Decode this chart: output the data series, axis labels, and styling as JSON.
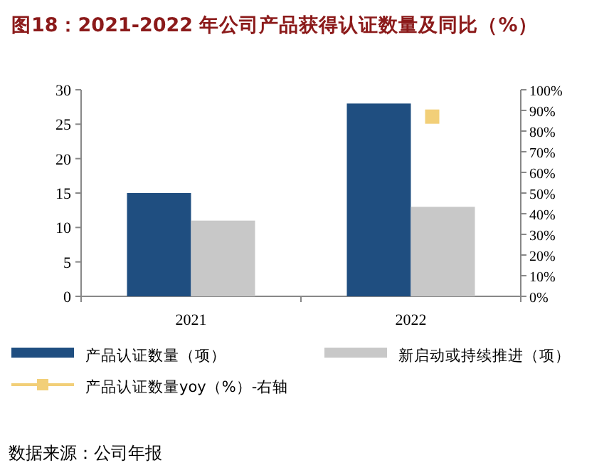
{
  "chart_data": {
    "type": "bar",
    "title": "图18：2021-2022 年公司产品获得认证数量及同比（%）",
    "categories": [
      "2021",
      "2022"
    ],
    "series": [
      {
        "name": "产品认证数量（项）",
        "color": "#1f4e80",
        "values": [
          15,
          28
        ]
      },
      {
        "name": "新启动或持续推进（项）",
        "color": "#c8c8c8",
        "values": [
          11,
          13
        ]
      },
      {
        "name": "产品认证数量yoy（%）-右轴",
        "color": "#f2cf78",
        "values": [
          null,
          87
        ],
        "type": "line",
        "axis": "y2",
        "marker": "square"
      }
    ],
    "ylim": [
      0,
      30
    ],
    "yticks": [
      0,
      5,
      10,
      15,
      20,
      25,
      30
    ],
    "y2lim": [
      0,
      100
    ],
    "y2ticks": [
      {
        "value": 0,
        "label": "0%"
      },
      {
        "value": 10,
        "label": "10%"
      },
      {
        "value": 20,
        "label": "20%"
      },
      {
        "value": 30,
        "label": "30%"
      },
      {
        "value": 40,
        "label": "40%"
      },
      {
        "value": 50,
        "label": "50%"
      },
      {
        "value": 60,
        "label": "60%"
      },
      {
        "value": 70,
        "label": "70%"
      },
      {
        "value": 80,
        "label": "80%"
      },
      {
        "value": 90,
        "label": "90%"
      },
      {
        "value": 100,
        "label": "100%"
      }
    ],
    "grid": false,
    "legend": "bottom",
    "annotations": [
      "数据来源：公司年报"
    ]
  }
}
